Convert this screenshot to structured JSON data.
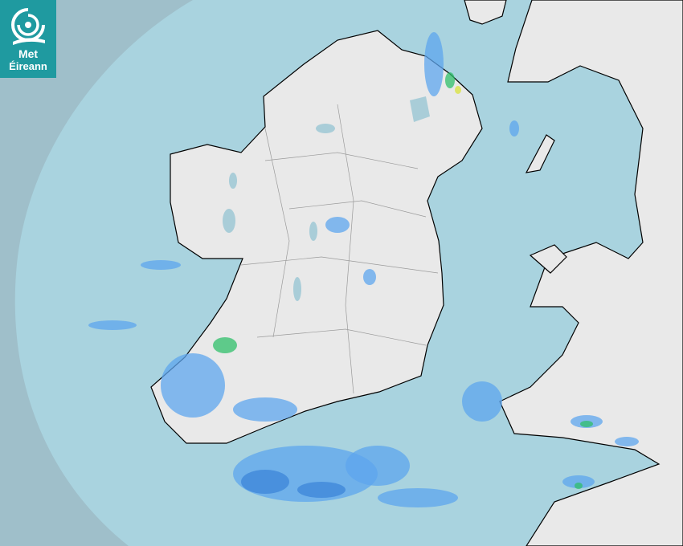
{
  "logo": {
    "line1": "Met",
    "line2": "Éireann",
    "color": "#1f9aa0"
  },
  "map": {
    "type": "rainfall radar",
    "colors": {
      "outside_range": "#9fbfca",
      "radar_range": "#a9d3df",
      "land": "#e9e9e9",
      "coastline": "#000000",
      "borders": "#9a9a9a",
      "lakes": "#a9cdd8",
      "rain_light": "#5ea6ee",
      "rain_moderate": "#3c86d8",
      "rain_heavy": "#2fbf6a",
      "rain_very_heavy": "#d8e23a"
    }
  }
}
